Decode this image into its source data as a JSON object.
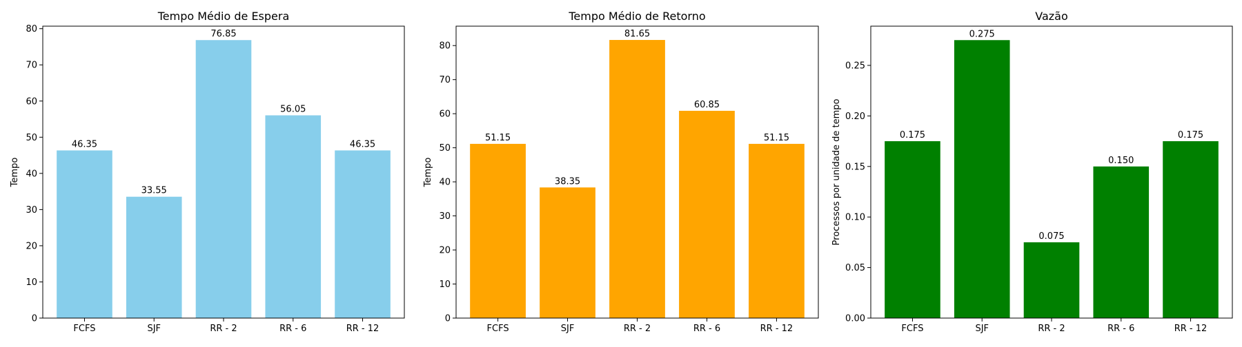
{
  "chart_data": [
    {
      "type": "bar",
      "title": "Tempo Médio de Espera",
      "xlabel": "",
      "ylabel": "Tempo",
      "categories": [
        "FCFS",
        "SJF",
        "RR - 2",
        "RR - 6",
        "RR - 12"
      ],
      "values": [
        46.35,
        33.55,
        76.85,
        56.05,
        46.35
      ],
      "value_labels": [
        "46.35",
        "33.55",
        "76.85",
        "56.05",
        "46.35"
      ],
      "ylim": [
        0,
        80.7
      ],
      "yticks": [
        0,
        10,
        20,
        30,
        40,
        50,
        60,
        70,
        80
      ],
      "ytick_labels": [
        "0",
        "10",
        "20",
        "30",
        "40",
        "50",
        "60",
        "70",
        "80"
      ],
      "color": "#87ceeb",
      "grid": false
    },
    {
      "type": "bar",
      "title": "Tempo Médio de Retorno",
      "xlabel": "",
      "ylabel": "Tempo",
      "categories": [
        "FCFS",
        "SJF",
        "RR - 2",
        "RR - 6",
        "RR - 12"
      ],
      "values": [
        51.15,
        38.35,
        81.65,
        60.85,
        51.15
      ],
      "value_labels": [
        "51.15",
        "38.35",
        "81.65",
        "60.85",
        "51.15"
      ],
      "ylim": [
        0,
        85.7
      ],
      "yticks": [
        0,
        10,
        20,
        30,
        40,
        50,
        60,
        70,
        80
      ],
      "ytick_labels": [
        "0",
        "10",
        "20",
        "30",
        "40",
        "50",
        "60",
        "70",
        "80"
      ],
      "color": "#ffa500",
      "grid": false
    },
    {
      "type": "bar",
      "title": "Vazão",
      "xlabel": "",
      "ylabel": "Processos por unidade de tempo",
      "categories": [
        "FCFS",
        "SJF",
        "RR - 2",
        "RR - 6",
        "RR - 12"
      ],
      "values": [
        0.175,
        0.275,
        0.075,
        0.15,
        0.175
      ],
      "value_labels": [
        "0.175",
        "0.275",
        "0.075",
        "0.150",
        "0.175"
      ],
      "ylim": [
        0,
        0.2888
      ],
      "yticks": [
        0,
        0.05,
        0.1,
        0.15,
        0.2,
        0.25
      ],
      "ytick_labels": [
        "0.00",
        "0.05",
        "0.10",
        "0.15",
        "0.20",
        "0.25"
      ],
      "color": "#008000",
      "grid": false
    }
  ]
}
